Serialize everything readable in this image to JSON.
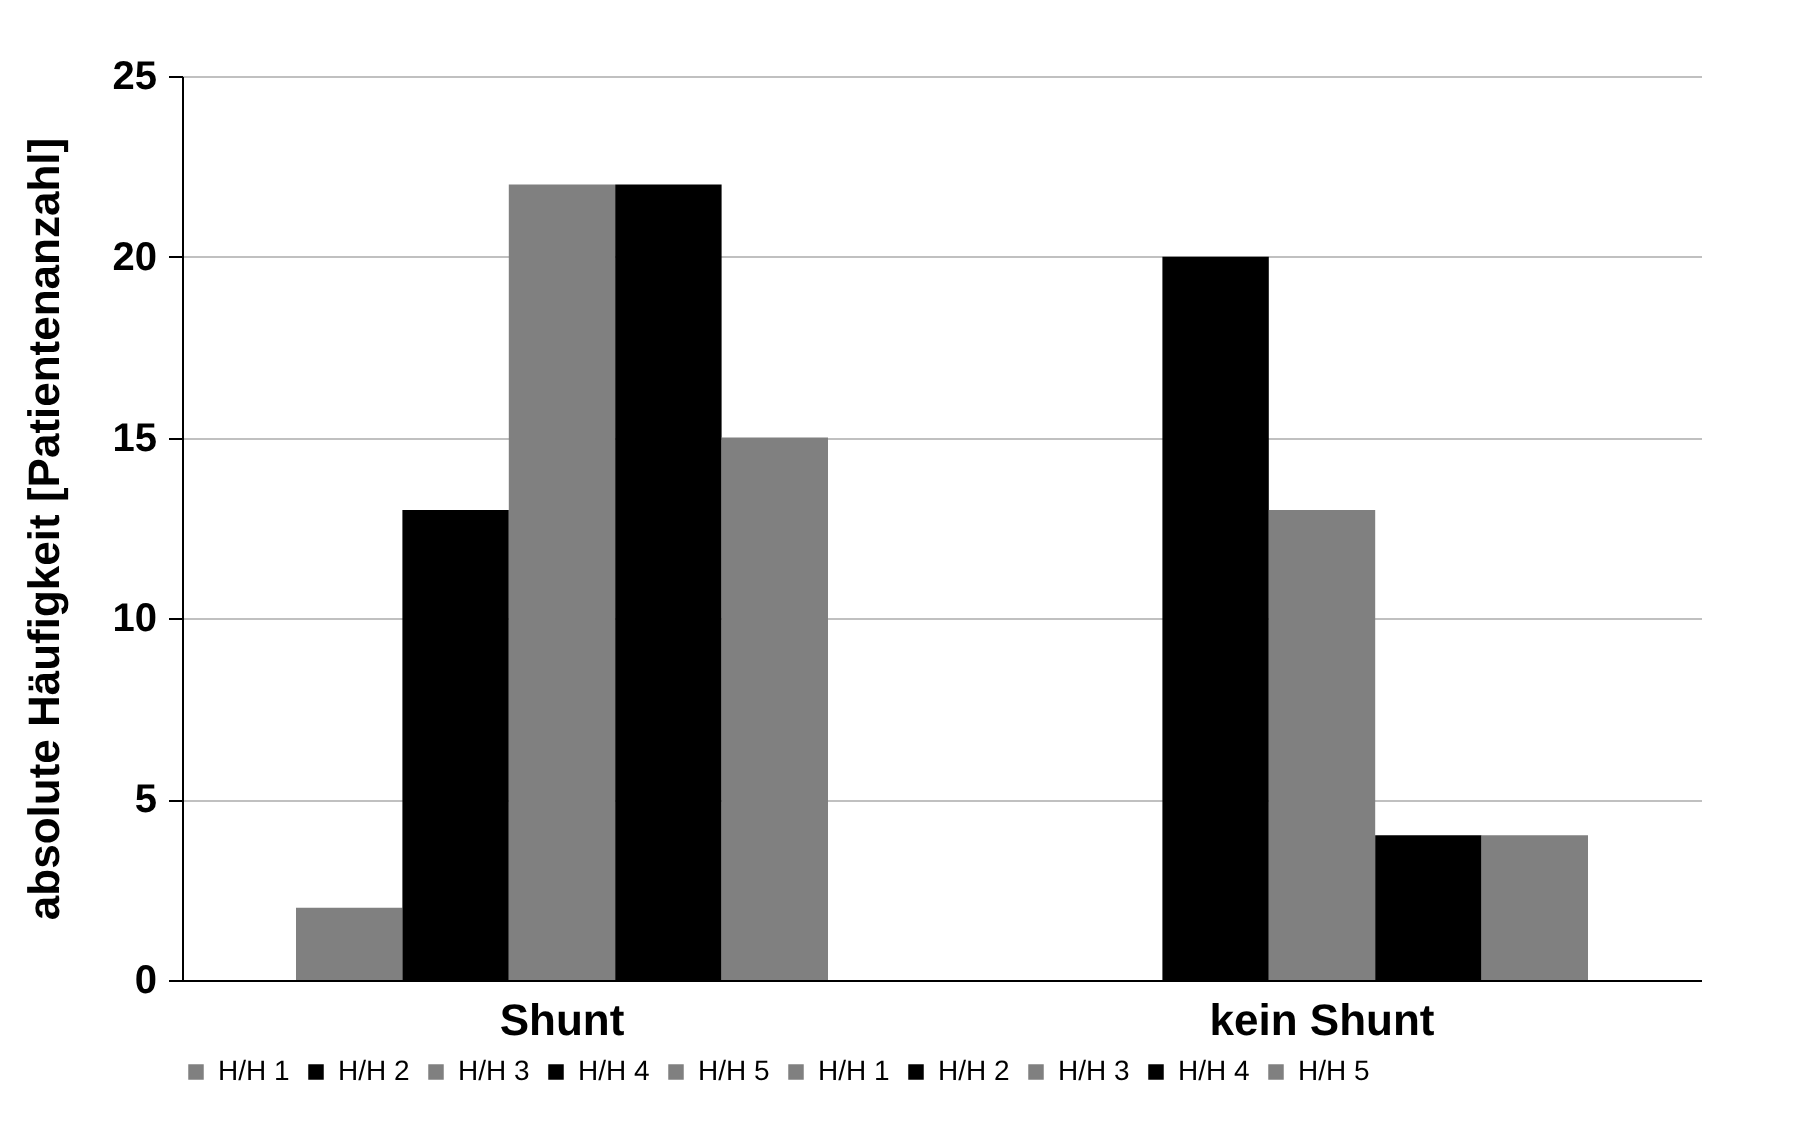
{
  "chart_data": {
    "type": "bar",
    "ylabel": "absolute Häufigkeit [Patientenanzahl]",
    "categories": [
      "Shunt",
      "kein Shunt"
    ],
    "series": [
      {
        "name": "H/H 1",
        "color": "#808080",
        "values": [
          2,
          null
        ]
      },
      {
        "name": "H/H 2",
        "color": "#000000",
        "values": [
          13,
          null
        ]
      },
      {
        "name": "H/H 3",
        "color": "#808080",
        "values": [
          22,
          null
        ]
      },
      {
        "name": "H/H 4",
        "color": "#000000",
        "values": [
          22,
          null
        ]
      },
      {
        "name": "H/H 5",
        "color": "#808080",
        "values": [
          15,
          null
        ]
      },
      {
        "name": "H/H 1",
        "color": "#808080",
        "values": [
          null,
          0
        ]
      },
      {
        "name": "H/H 2",
        "color": "#000000",
        "values": [
          null,
          20
        ]
      },
      {
        "name": "H/H 3",
        "color": "#808080",
        "values": [
          null,
          13
        ]
      },
      {
        "name": "H/H 4",
        "color": "#000000",
        "values": [
          null,
          4
        ]
      },
      {
        "name": "H/H 5",
        "color": "#808080",
        "values": [
          null,
          4
        ]
      }
    ],
    "ylim": [
      0,
      25
    ],
    "yticks": [
      0,
      5,
      10,
      15,
      20,
      25
    ],
    "grid": "y",
    "legend": "bottom"
  }
}
